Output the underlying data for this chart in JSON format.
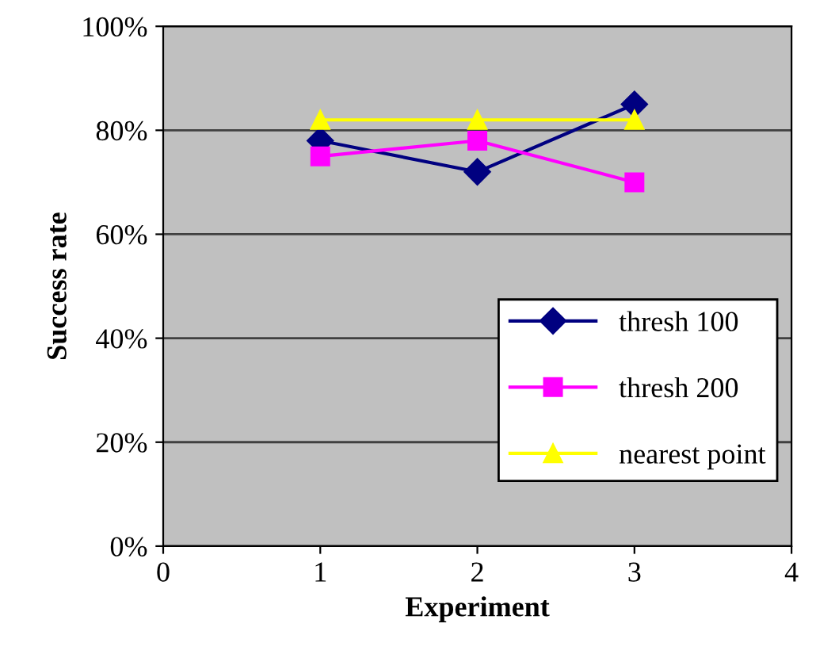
{
  "chart_data": {
    "type": "line",
    "xlabel": "Experiment",
    "ylabel": "Success rate",
    "x": [
      1,
      2,
      3
    ],
    "series": [
      {
        "name": "thresh 100",
        "color": "#000080",
        "marker": "diamond",
        "values": [
          78,
          72,
          85
        ]
      },
      {
        "name": "thresh 200",
        "color": "#ff00ff",
        "marker": "square",
        "values": [
          75,
          78,
          70
        ]
      },
      {
        "name": "nearest point",
        "color": "#ffff00",
        "marker": "triangle",
        "values": [
          82,
          82,
          82
        ]
      }
    ],
    "xlim": [
      0,
      4
    ],
    "xticks": [
      0,
      1,
      2,
      3,
      4
    ],
    "ylim": [
      0,
      100
    ],
    "yticks": [
      {
        "value": 0,
        "label": "0%"
      },
      {
        "value": 20,
        "label": "20%"
      },
      {
        "value": 40,
        "label": "40%"
      },
      {
        "value": 60,
        "label": "60%"
      },
      {
        "value": 80,
        "label": "80%"
      },
      {
        "value": 100,
        "label": "100%"
      }
    ],
    "grid": "y",
    "legend": "right",
    "line_style": "solid"
  }
}
